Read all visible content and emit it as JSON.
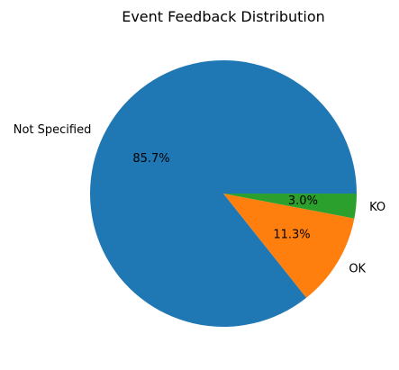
{
  "chart_data": {
    "type": "pie",
    "title": "Event Feedback Distribution",
    "labels": [
      "Not Specified",
      "OK",
      "KO"
    ],
    "values": [
      85.7,
      11.3,
      3.0
    ],
    "value_labels": [
      "85.7%",
      "11.3%",
      "3.0%"
    ],
    "colors": [
      "#1f77b4",
      "#ff7f0e",
      "#2ca02c"
    ],
    "start_angle_deg": 0,
    "direction": "counterclockwise",
    "legend": "none"
  }
}
